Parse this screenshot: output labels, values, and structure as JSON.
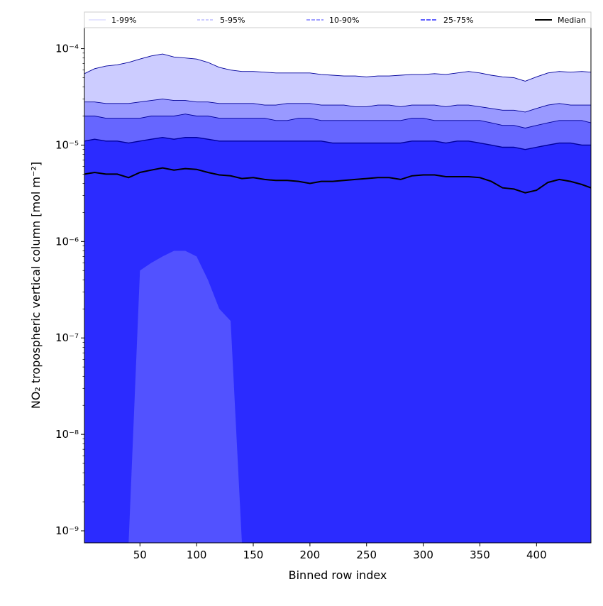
{
  "chart_data": {
    "type": "area",
    "xlabel": "Binned row index",
    "ylabel": "NO₂ tropospheric vertical column [mol m⁻²]",
    "xlim": [
      1,
      448
    ],
    "ylim": [
      7.5e-10,
      0.000165
    ],
    "yscale": "log",
    "grid": false,
    "legend_position": "top",
    "x_ticks": [
      50,
      100,
      150,
      200,
      250,
      300,
      350,
      400
    ],
    "x_tick_labels": [
      "50",
      "100",
      "150",
      "200",
      "250",
      "300",
      "350",
      "400"
    ],
    "y_ticks": [
      1e-09,
      1e-08,
      1e-07,
      1e-06,
      1e-05,
      0.0001
    ],
    "y_tick_labels": [
      "10⁻⁹",
      "10⁻⁸",
      "10⁻⁷",
      "10⁻⁶",
      "10⁻⁵",
      "10⁻⁴"
    ],
    "x": [
      1,
      10,
      20,
      30,
      40,
      50,
      60,
      70,
      80,
      90,
      100,
      110,
      120,
      130,
      140,
      150,
      160,
      170,
      180,
      190,
      200,
      210,
      220,
      230,
      240,
      250,
      260,
      270,
      280,
      290,
      300,
      310,
      320,
      330,
      340,
      350,
      360,
      370,
      380,
      390,
      400,
      410,
      420,
      430,
      440,
      448
    ],
    "series": [
      {
        "name": "1-99%",
        "lower_min": 7.5e-10,
        "lower": [
          7.5e-10,
          7.5e-10,
          7.5e-10,
          7.5e-10,
          7.5e-10,
          5e-07,
          6e-07,
          7e-07,
          8e-07,
          8e-07,
          7e-07,
          4e-07,
          2e-07,
          1.5e-07,
          7.5e-10,
          7.5e-10,
          7.5e-10,
          7.5e-10,
          7.5e-10,
          7.5e-10,
          7.5e-10,
          7.5e-10,
          7.5e-10,
          7.5e-10,
          7.5e-10,
          7.5e-10,
          7.5e-10,
          7.5e-10,
          7.5e-10,
          7.5e-10,
          7.5e-10,
          7.5e-10,
          7.5e-10,
          7.5e-10,
          7.5e-10,
          7.5e-10,
          7.5e-10,
          7.5e-10,
          7.5e-10,
          7.5e-10,
          7.5e-10,
          7.5e-10,
          7.5e-10,
          7.5e-10,
          7.5e-10,
          7.5e-10
        ],
        "upper": [
          5.5e-05,
          6.2e-05,
          6.6e-05,
          6.8e-05,
          7.2e-05,
          7.8e-05,
          8.4e-05,
          8.8e-05,
          8.2e-05,
          8e-05,
          7.8e-05,
          7.2e-05,
          6.4e-05,
          6e-05,
          5.8e-05,
          5.8e-05,
          5.7e-05,
          5.6e-05,
          5.6e-05,
          5.6e-05,
          5.6e-05,
          5.4e-05,
          5.3e-05,
          5.2e-05,
          5.2e-05,
          5.1e-05,
          5.2e-05,
          5.2e-05,
          5.3e-05,
          5.4e-05,
          5.4e-05,
          5.5e-05,
          5.4e-05,
          5.6e-05,
          5.8e-05,
          5.6e-05,
          5.3e-05,
          5.1e-05,
          5e-05,
          4.6e-05,
          5.1e-05,
          5.6e-05,
          5.8e-05,
          5.7e-05,
          5.8e-05,
          5.7e-05
        ]
      },
      {
        "name": "5-95%",
        "upper": [
          2.8e-05,
          2.8e-05,
          2.7e-05,
          2.7e-05,
          2.7e-05,
          2.8e-05,
          2.9e-05,
          3e-05,
          2.9e-05,
          2.9e-05,
          2.8e-05,
          2.8e-05,
          2.7e-05,
          2.7e-05,
          2.7e-05,
          2.7e-05,
          2.6e-05,
          2.6e-05,
          2.7e-05,
          2.7e-05,
          2.7e-05,
          2.6e-05,
          2.6e-05,
          2.6e-05,
          2.5e-05,
          2.5e-05,
          2.6e-05,
          2.6e-05,
          2.5e-05,
          2.6e-05,
          2.6e-05,
          2.6e-05,
          2.5e-05,
          2.6e-05,
          2.6e-05,
          2.5e-05,
          2.4e-05,
          2.3e-05,
          2.3e-05,
          2.2e-05,
          2.4e-05,
          2.6e-05,
          2.7e-05,
          2.6e-05,
          2.6e-05,
          2.6e-05
        ]
      },
      {
        "name": "10-90%",
        "upper": [
          2e-05,
          2e-05,
          1.9e-05,
          1.9e-05,
          1.9e-05,
          1.9e-05,
          2e-05,
          2e-05,
          2e-05,
          2.1e-05,
          2e-05,
          2e-05,
          1.9e-05,
          1.9e-05,
          1.9e-05,
          1.9e-05,
          1.9e-05,
          1.8e-05,
          1.8e-05,
          1.9e-05,
          1.9e-05,
          1.8e-05,
          1.8e-05,
          1.8e-05,
          1.8e-05,
          1.8e-05,
          1.8e-05,
          1.8e-05,
          1.8e-05,
          1.9e-05,
          1.9e-05,
          1.8e-05,
          1.8e-05,
          1.8e-05,
          1.8e-05,
          1.8e-05,
          1.7e-05,
          1.6e-05,
          1.6e-05,
          1.5e-05,
          1.6e-05,
          1.7e-05,
          1.8e-05,
          1.8e-05,
          1.8e-05,
          1.7e-05
        ]
      },
      {
        "name": "25-75%",
        "upper": [
          1.1e-05,
          1.15e-05,
          1.1e-05,
          1.1e-05,
          1.05e-05,
          1.1e-05,
          1.15e-05,
          1.2e-05,
          1.15e-05,
          1.2e-05,
          1.2e-05,
          1.15e-05,
          1.1e-05,
          1.1e-05,
          1.1e-05,
          1.1e-05,
          1.1e-05,
          1.1e-05,
          1.1e-05,
          1.1e-05,
          1.1e-05,
          1.1e-05,
          1.05e-05,
          1.05e-05,
          1.05e-05,
          1.05e-05,
          1.05e-05,
          1.05e-05,
          1.05e-05,
          1.1e-05,
          1.1e-05,
          1.1e-05,
          1.05e-05,
          1.1e-05,
          1.1e-05,
          1.05e-05,
          1e-05,
          9.5e-06,
          9.5e-06,
          9e-06,
          9.5e-06,
          1e-05,
          1.05e-05,
          1.05e-05,
          1e-05,
          1e-05
        ]
      },
      {
        "name": "Median",
        "values": [
          5e-06,
          5.2e-06,
          5e-06,
          5e-06,
          4.6e-06,
          5.2e-06,
          5.5e-06,
          5.8e-06,
          5.5e-06,
          5.7e-06,
          5.6e-06,
          5.2e-06,
          4.9e-06,
          4.8e-06,
          4.5e-06,
          4.6e-06,
          4.4e-06,
          4.3e-06,
          4.3e-06,
          4.2e-06,
          4e-06,
          4.2e-06,
          4.2e-06,
          4.3e-06,
          4.4e-06,
          4.5e-06,
          4.6e-06,
          4.6e-06,
          4.4e-06,
          4.8e-06,
          4.9e-06,
          4.9e-06,
          4.7e-06,
          4.7e-06,
          4.7e-06,
          4.6e-06,
          4.2e-06,
          3.6e-06,
          3.5e-06,
          3.2e-06,
          3.4e-06,
          4.1e-06,
          4.4e-06,
          4.2e-06,
          3.9e-06,
          3.6e-06
        ]
      }
    ],
    "colors": {
      "band_1_99": "#ccccff",
      "band_5_95": "#9999ff",
      "band_10_90": "#6666ff",
      "band_25_75": "#2b2bff",
      "low_values": "#5656ff",
      "median": "#000000",
      "band_edge": "#00009a"
    }
  }
}
